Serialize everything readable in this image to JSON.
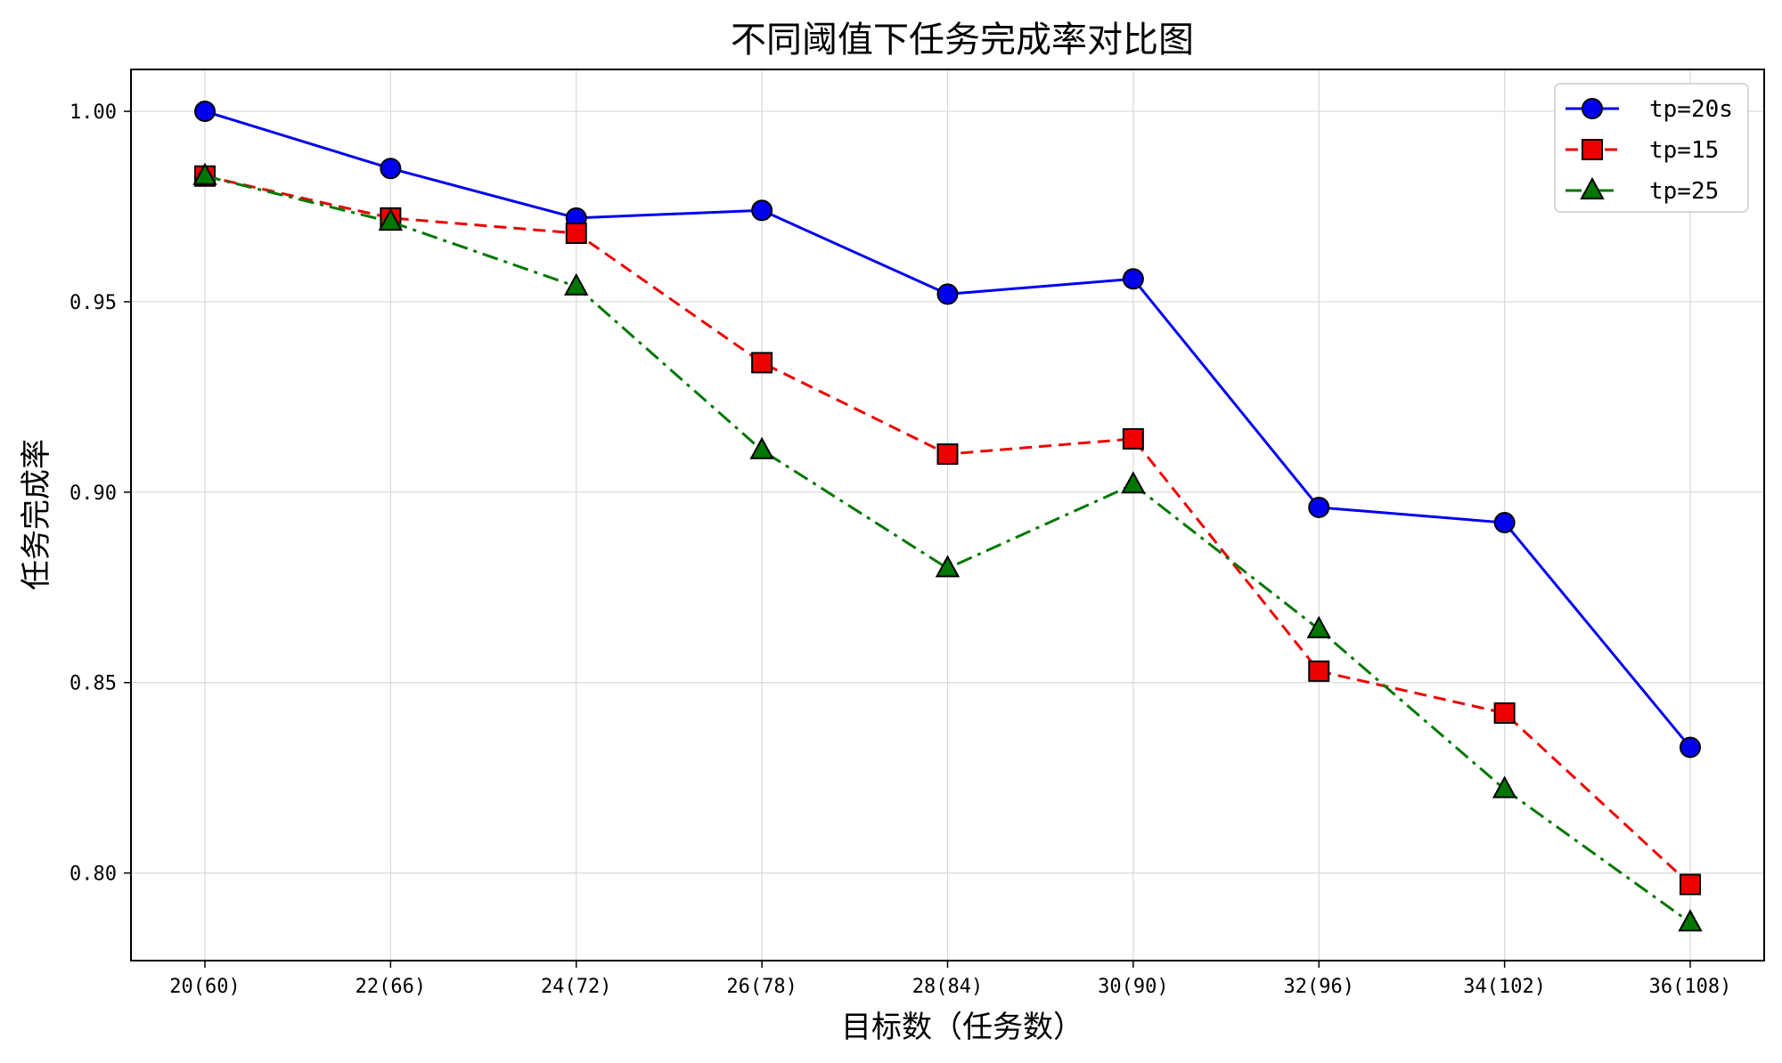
{
  "chart_data": {
    "type": "line",
    "title": "不同阈值下任务完成率对比图",
    "xlabel": "目标数（任务数）",
    "ylabel": "任务完成率",
    "categories": [
      "20(60)",
      "22(66)",
      "24(72)",
      "26(78)",
      "28(84)",
      "30(90)",
      "32(96)",
      "34(102)",
      "36(108)"
    ],
    "ylim": [
      0.777,
      1.011
    ],
    "yticks": [
      0.8,
      0.85,
      0.9,
      0.95,
      1.0
    ],
    "ytick_labels": [
      "0.80",
      "0.85",
      "0.90",
      "0.95",
      "1.00"
    ],
    "grid": true,
    "legend_position": "top-right",
    "series": [
      {
        "name": "tp=20s",
        "color": "#0000ee",
        "marker": "circle",
        "linestyle": "solid",
        "values": [
          1.0,
          0.985,
          0.972,
          0.974,
          0.952,
          0.956,
          0.896,
          0.892,
          0.833
        ]
      },
      {
        "name": "tp=15",
        "color": "#ee0000",
        "marker": "square",
        "linestyle": "dashed",
        "values": [
          0.983,
          0.972,
          0.968,
          0.934,
          0.91,
          0.914,
          0.853,
          0.842,
          0.797
        ]
      },
      {
        "name": "tp=25",
        "color": "#007700",
        "marker": "triangle",
        "linestyle": "dashdot",
        "values": [
          0.983,
          0.971,
          0.954,
          0.911,
          0.88,
          0.902,
          0.864,
          0.822,
          0.787
        ]
      }
    ]
  }
}
